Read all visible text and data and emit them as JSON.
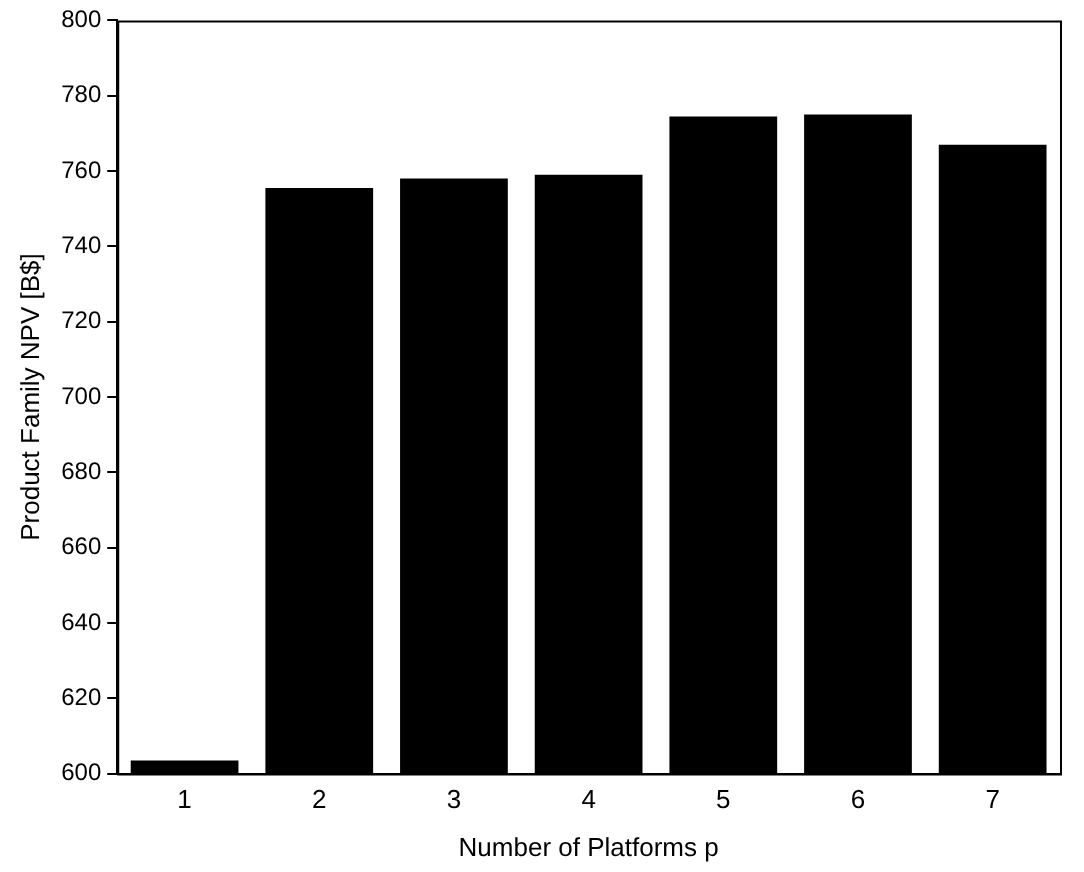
{
  "chart_data": {
    "type": "bar",
    "xlabel": "Number of Platforms p",
    "ylabel": "Product Family NPV [B$]",
    "categories": [
      "1",
      "2",
      "3",
      "4",
      "5",
      "6",
      "7"
    ],
    "values": [
      603.5,
      755.5,
      758,
      759,
      774.5,
      775,
      767
    ],
    "color": "#000000",
    "ylim": [
      600,
      800
    ],
    "yticks": [
      600,
      620,
      640,
      660,
      680,
      700,
      720,
      740,
      760,
      780,
      800
    ],
    "grid": false,
    "legend": false
  }
}
